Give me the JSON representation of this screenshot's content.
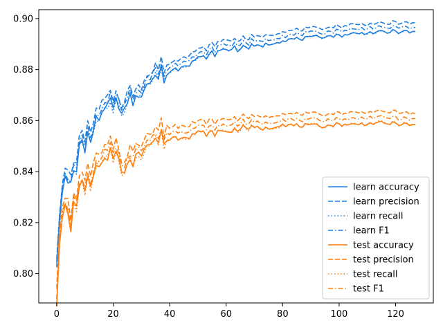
{
  "chart_data": {
    "type": "line",
    "title": "",
    "xlabel": "",
    "ylabel": "",
    "xlim": [
      -6.35,
      133.35
    ],
    "ylim": [
      0.7885,
      0.9035
    ],
    "xticks": [
      0,
      20,
      40,
      60,
      80,
      100,
      120
    ],
    "yticks": [
      0.8,
      0.82,
      0.84,
      0.86,
      0.88,
      0.9
    ],
    "grid": false,
    "legend_position": "lower-right",
    "colors": {
      "learn": "#1f7fe0",
      "test": "#ff7f0e"
    },
    "x_count": 128,
    "anchors": {
      "learn": [
        [
          0,
          0.806
        ],
        [
          1,
          0.823
        ],
        [
          2,
          0.829
        ],
        [
          3,
          0.838
        ],
        [
          4,
          0.834
        ],
        [
          6,
          0.838
        ],
        [
          8,
          0.848
        ],
        [
          10,
          0.851
        ],
        [
          12,
          0.854
        ],
        [
          14,
          0.858
        ],
        [
          16,
          0.862
        ],
        [
          18,
          0.864
        ],
        [
          20,
          0.866
        ],
        [
          22,
          0.868
        ],
        [
          24,
          0.863
        ],
        [
          26,
          0.868
        ],
        [
          28,
          0.87
        ],
        [
          30,
          0.873
        ],
        [
          35,
          0.877
        ],
        [
          40,
          0.879
        ],
        [
          45,
          0.882
        ],
        [
          50,
          0.884
        ],
        [
          55,
          0.886
        ],
        [
          60,
          0.888
        ],
        [
          65,
          0.8885
        ],
        [
          70,
          0.889
        ],
        [
          75,
          0.89
        ],
        [
          80,
          0.8915
        ],
        [
          85,
          0.892
        ],
        [
          90,
          0.8925
        ],
        [
          95,
          0.893
        ],
        [
          100,
          0.8935
        ],
        [
          105,
          0.894
        ],
        [
          110,
          0.8945
        ],
        [
          115,
          0.8945
        ],
        [
          120,
          0.895
        ],
        [
          127,
          0.8945
        ]
      ],
      "test": [
        [
          0,
          0.791
        ],
        [
          1,
          0.815
        ],
        [
          2,
          0.82
        ],
        [
          3,
          0.826
        ],
        [
          4,
          0.822
        ],
        [
          5,
          0.818
        ],
        [
          6,
          0.826
        ],
        [
          8,
          0.831
        ],
        [
          10,
          0.834
        ],
        [
          12,
          0.836
        ],
        [
          14,
          0.84
        ],
        [
          16,
          0.842
        ],
        [
          18,
          0.844
        ],
        [
          20,
          0.846
        ],
        [
          22,
          0.847
        ],
        [
          24,
          0.838
        ],
        [
          26,
          0.843
        ],
        [
          28,
          0.847
        ],
        [
          30,
          0.849
        ],
        [
          35,
          0.852
        ],
        [
          40,
          0.853
        ],
        [
          45,
          0.854
        ],
        [
          50,
          0.855
        ],
        [
          55,
          0.855
        ],
        [
          60,
          0.856
        ],
        [
          65,
          0.857
        ],
        [
          70,
          0.857
        ],
        [
          75,
          0.857
        ],
        [
          80,
          0.8585
        ],
        [
          85,
          0.858
        ],
        [
          90,
          0.858
        ],
        [
          95,
          0.858
        ],
        [
          100,
          0.8585
        ],
        [
          105,
          0.8585
        ],
        [
          110,
          0.859
        ],
        [
          115,
          0.859
        ],
        [
          120,
          0.859
        ],
        [
          127,
          0.858
        ]
      ]
    },
    "series_offsets": {
      "learn accuracy": 0.0,
      "learn precision": 0.0035,
      "learn recall": 0.0,
      "learn F1": 0.0018,
      "test accuracy": 0.0,
      "test precision": 0.0045,
      "test recall": 0.0,
      "test F1": 0.0022
    },
    "series": [
      {
        "name": "learn accuracy",
        "group": "learn",
        "style": "solid"
      },
      {
        "name": "learn precision",
        "group": "learn",
        "style": "dashed"
      },
      {
        "name": "learn recall",
        "group": "learn",
        "style": "dotted"
      },
      {
        "name": "learn F1",
        "group": "learn",
        "style": "dashdot"
      },
      {
        "name": "test accuracy",
        "group": "test",
        "style": "solid"
      },
      {
        "name": "test precision",
        "group": "test",
        "style": "dashed"
      },
      {
        "name": "test recall",
        "group": "test",
        "style": "dotted"
      },
      {
        "name": "test F1",
        "group": "test",
        "style": "dashdot"
      }
    ]
  }
}
